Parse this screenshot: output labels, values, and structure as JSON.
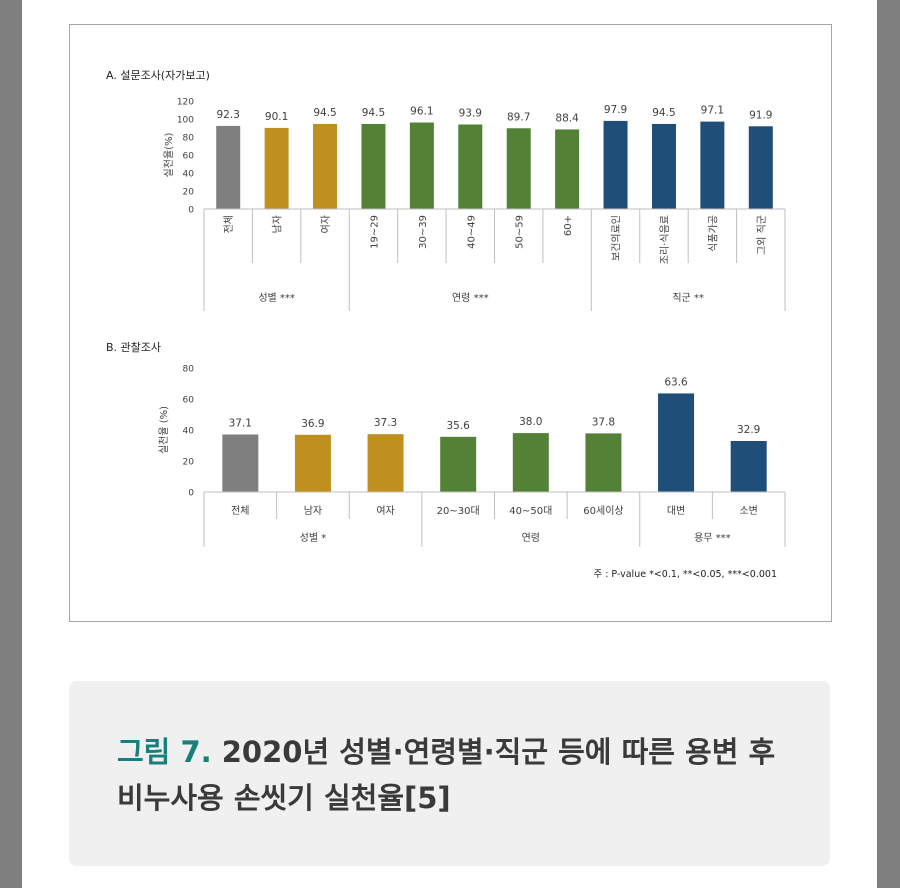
{
  "chart_data": [
    {
      "type": "bar",
      "title": "A. 설문조사(자가보고)",
      "ylabel": "실천율(%)",
      "ylim": [
        0,
        120
      ],
      "yticks": [
        0,
        20,
        40,
        60,
        80,
        100,
        120
      ],
      "grid": false,
      "categories": [
        "전체",
        "남자",
        "여자",
        "19~29",
        "30~39",
        "40~49",
        "50~59",
        "60+",
        "보건의료인",
        "조리·식음료",
        "식품가공",
        "그외 직군"
      ],
      "values": [
        92.3,
        90.1,
        94.5,
        94.5,
        96.1,
        93.9,
        89.7,
        88.4,
        97.9,
        94.5,
        97.1,
        91.9
      ],
      "value_labels": [
        "92.3",
        "90.1",
        "94.5",
        "94.5",
        "96.1",
        "93.9",
        "89.7",
        "88.4",
        "97.9",
        "94.5",
        "97.1",
        "91.9"
      ],
      "groups": [
        {
          "label": "성별 ***",
          "count": 3
        },
        {
          "label": "연령 ***",
          "count": 5
        },
        {
          "label": "직군 **",
          "count": 4
        }
      ],
      "bar_colors": [
        "#7f7f7f",
        "#bf9020",
        "#bf9020",
        "#538135",
        "#538135",
        "#538135",
        "#538135",
        "#538135",
        "#1f4e79",
        "#1f4e79",
        "#1f4e79",
        "#1f4e79"
      ]
    },
    {
      "type": "bar",
      "title": "B. 관찰조사",
      "ylabel": "실천율 (%)",
      "ylim": [
        0,
        80
      ],
      "yticks": [
        0,
        20,
        40,
        60,
        80
      ],
      "grid": false,
      "categories": [
        "전체",
        "남자",
        "여자",
        "20~30대",
        "40~50대",
        "60세이상",
        "대변",
        "소변"
      ],
      "values": [
        37.1,
        36.9,
        37.3,
        35.6,
        38.0,
        37.8,
        63.6,
        32.9
      ],
      "value_labels": [
        "37.1",
        "36.9",
        "37.3",
        "35.6",
        "38.0",
        "37.8",
        "63.6",
        "32.9"
      ],
      "groups": [
        {
          "label": "성별 *",
          "count": 3
        },
        {
          "label": "연령",
          "count": 3
        },
        {
          "label": "용무 ***",
          "count": 2
        }
      ],
      "bar_colors": [
        "#7f7f7f",
        "#bf9020",
        "#bf9020",
        "#538135",
        "#538135",
        "#538135",
        "#1f4e79",
        "#1f4e79"
      ],
      "footnote": "주 : P-value *<0.1, **<0.05, ***<0.001"
    }
  ],
  "caption": {
    "prefix": "그림 7.",
    "text": " 2020년 성별·연령별·직군 등에 따른 용변 후 비누사용 손씻기 실천율[5]"
  }
}
